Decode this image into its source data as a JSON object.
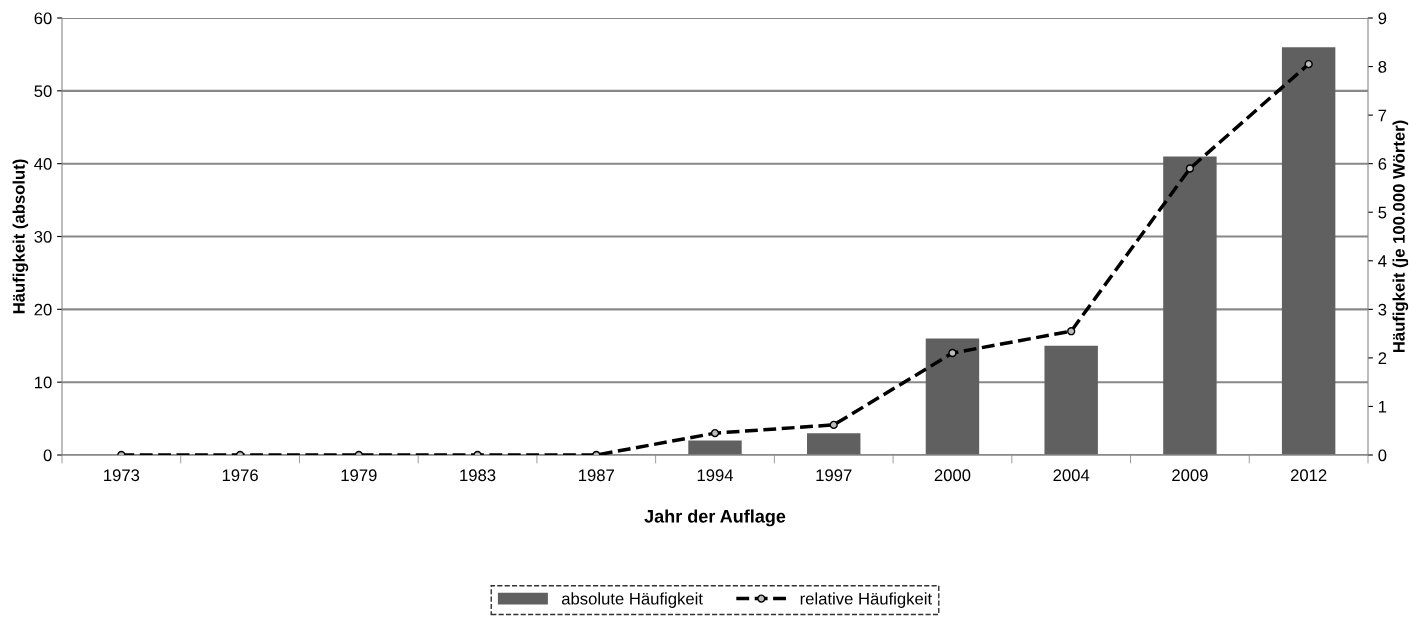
{
  "chart_data": {
    "type": "bar",
    "xlabel": "Jahr der Auflage",
    "ylabel": "Häufigkeit (absolut)",
    "y2label": "Häufigkeit (je 100.000 Wörter)",
    "categories": [
      "1973",
      "1976",
      "1979",
      "1983",
      "1987",
      "1994",
      "1997",
      "2000",
      "2004",
      "2009",
      "2012"
    ],
    "series": [
      {
        "name": "absolute Häufigkeit",
        "color": "#606060",
        "values": [
          0,
          0,
          0,
          0,
          0,
          2,
          3,
          16,
          15,
          41,
          56
        ]
      },
      {
        "name": "relative Häufigkeit",
        "type": "line",
        "axis": "y2",
        "color": "#000000",
        "marker": "circle",
        "line_style": "dashed",
        "values": [
          0,
          0,
          0,
          0,
          0,
          0.45,
          0.62,
          2.1,
          2.55,
          5.9,
          8.05
        ]
      }
    ],
    "ylim": [
      0,
      60
    ],
    "yticks": [
      0,
      10,
      20,
      30,
      40,
      50,
      60
    ],
    "y2lim": [
      0,
      9
    ],
    "y2ticks": [
      0,
      1,
      2,
      3,
      4,
      5,
      6,
      7,
      8,
      9
    ],
    "grid": "y",
    "legend": "bottom"
  }
}
